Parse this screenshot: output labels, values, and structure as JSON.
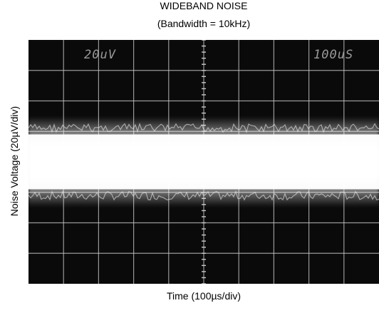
{
  "chart_data": {
    "type": "area",
    "title": "WIDEBAND NOISE",
    "subtitle": "(Bandwidth = 10kHz)",
    "xlabel": "Time (100µs/div)",
    "ylabel": "Noise Voltage (20µV/div)",
    "scope_readouts": {
      "vertical_scale": "20uV",
      "horizontal_scale": "100uS"
    },
    "grid": true,
    "x_divisions": 10,
    "y_divisions": 8,
    "xlim": [
      0,
      10
    ],
    "ylim": [
      -4,
      4
    ],
    "series": [
      {
        "band_core_divisions": [
          -0.9,
          0.9
        ],
        "band_edge_divisions": [
          -1.25,
          1.25
        ]
      }
    ]
  },
  "colors": {
    "screen": "#0a0a0a",
    "grid": "#c8c8c8",
    "trace": "#ffffff",
    "readout": "#9a9a9a"
  }
}
